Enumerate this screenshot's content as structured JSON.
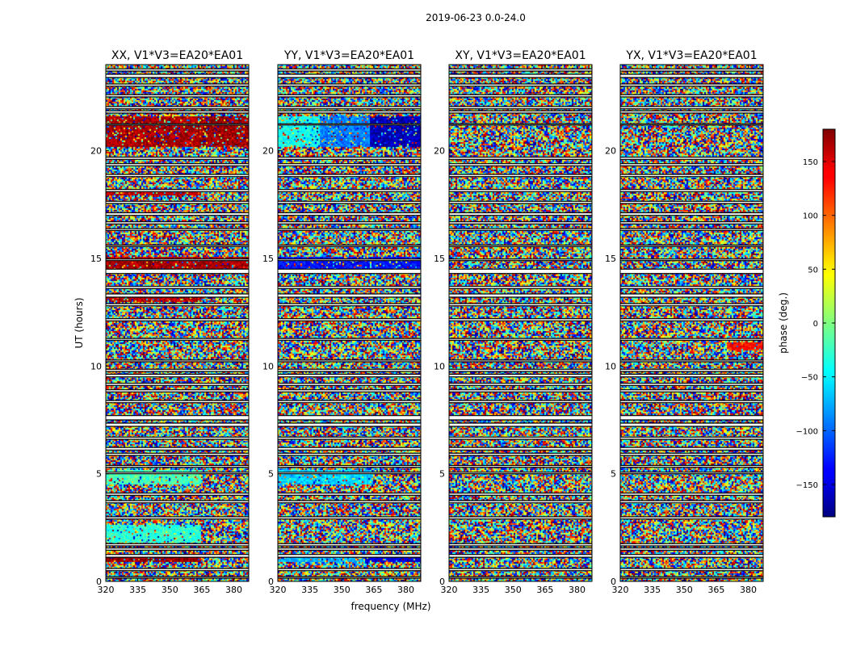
{
  "figure": {
    "suptitle": "2019-06-23 0.0-24.0"
  },
  "chart_data": [
    {
      "type": "heatmap",
      "title": "XX, V1*V3=EA20*EA01",
      "xlabel": "",
      "ylabel": "UT (hours)",
      "xlim": [
        320,
        387
      ],
      "ylim": [
        0,
        24
      ],
      "xticks": [
        "320",
        "335",
        "350",
        "365",
        "380"
      ],
      "yticks": [
        "0",
        "5",
        "10",
        "15",
        "20"
      ],
      "coherent_regions": [
        {
          "y": [
            20.2,
            21.6
          ],
          "x": [
            320,
            363
          ],
          "phase_deg": 165
        },
        {
          "y": [
            20.2,
            21.6
          ],
          "x": [
            363,
            387
          ],
          "phase_deg": 170
        },
        {
          "y": [
            14.5,
            15.1
          ],
          "x": [
            320,
            387
          ],
          "phase_deg": 165
        },
        {
          "y": [
            13.0,
            13.3
          ],
          "x": [
            320,
            365
          ],
          "phase_deg": 160
        },
        {
          "y": [
            17.9,
            18.2
          ],
          "x": [
            320,
            365
          ],
          "phase_deg": 160
        },
        {
          "y": [
            0.9,
            1.1
          ],
          "x": [
            320,
            363
          ],
          "phase_deg": 170
        },
        {
          "y": [
            4.5,
            5.2
          ],
          "x": [
            320,
            365
          ],
          "phase_deg": -20
        },
        {
          "y": [
            1.8,
            2.6
          ],
          "x": [
            320,
            365
          ],
          "phase_deg": -30
        }
      ]
    },
    {
      "type": "heatmap",
      "title": "YY, V1*V3=EA20*EA01",
      "xlabel": "frequency (MHz)",
      "ylabel": "",
      "xlim": [
        320,
        387
      ],
      "ylim": [
        0,
        24
      ],
      "xticks": [
        "320",
        "335",
        "350",
        "365",
        "380"
      ],
      "yticks": [
        "0",
        "5",
        "10",
        "15",
        "20"
      ],
      "coherent_regions": [
        {
          "y": [
            20.2,
            21.6
          ],
          "x": [
            320,
            340
          ],
          "phase_deg": -40
        },
        {
          "y": [
            20.2,
            21.6
          ],
          "x": [
            340,
            363
          ],
          "phase_deg": -90
        },
        {
          "y": [
            20.2,
            21.6
          ],
          "x": [
            363,
            387
          ],
          "phase_deg": -160
        },
        {
          "y": [
            14.5,
            15.1
          ],
          "x": [
            320,
            387
          ],
          "phase_deg": -130
        },
        {
          "y": [
            0.9,
            1.1
          ],
          "x": [
            320,
            360
          ],
          "phase_deg": -70
        },
        {
          "y": [
            0.9,
            1.1
          ],
          "x": [
            360,
            387
          ],
          "phase_deg": -150
        },
        {
          "y": [
            4.5,
            5.2
          ],
          "x": [
            320,
            365
          ],
          "phase_deg": -60
        }
      ]
    },
    {
      "type": "heatmap",
      "title": "XY, V1*V3=EA20*EA01",
      "xlabel": "",
      "ylabel": "",
      "xlim": [
        320,
        387
      ],
      "ylim": [
        0,
        24
      ],
      "xticks": [
        "320",
        "335",
        "350",
        "365",
        "380"
      ],
      "yticks": [
        "0",
        "5",
        "10",
        "15",
        "20"
      ],
      "coherent_regions": []
    },
    {
      "type": "heatmap",
      "title": "YX, V1*V3=EA20*EA01",
      "xlabel": "",
      "ylabel": "",
      "xlim": [
        320,
        387
      ],
      "ylim": [
        0,
        24
      ],
      "xticks": [
        "320",
        "335",
        "350",
        "365",
        "380"
      ],
      "yticks": [
        "0",
        "5",
        "10",
        "15",
        "20"
      ],
      "coherent_regions": [
        {
          "y": [
            10.7,
            11.1
          ],
          "x": [
            370,
            387
          ],
          "phase_deg": 130
        }
      ]
    }
  ],
  "data_gaps_ut": [
    [
      0.15,
      0.22
    ],
    [
      0.5,
      0.6
    ],
    [
      1.12,
      1.25
    ],
    [
      1.45,
      1.55
    ],
    [
      1.65,
      1.75
    ],
    [
      2.9,
      3.0
    ],
    [
      3.65,
      3.75
    ],
    [
      4.0,
      4.1
    ],
    [
      5.0,
      5.07
    ],
    [
      5.3,
      5.38
    ],
    [
      5.85,
      5.95
    ],
    [
      6.1,
      6.22
    ],
    [
      6.6,
      6.7
    ],
    [
      7.2,
      7.35
    ],
    [
      7.5,
      7.7
    ],
    [
      8.3,
      8.4
    ],
    [
      8.8,
      8.9
    ],
    [
      9.1,
      9.2
    ],
    [
      9.5,
      9.62
    ],
    [
      9.75,
      9.85
    ],
    [
      10.2,
      10.28
    ],
    [
      11.2,
      11.28
    ],
    [
      12.1,
      12.2
    ],
    [
      12.8,
      12.9
    ],
    [
      13.2,
      13.35
    ],
    [
      13.6,
      13.7
    ],
    [
      14.3,
      14.5
    ],
    [
      14.9,
      14.97
    ],
    [
      15.55,
      15.62
    ],
    [
      16.3,
      16.38
    ],
    [
      16.6,
      16.7
    ],
    [
      17.0,
      17.12
    ],
    [
      17.55,
      17.65
    ],
    [
      18.1,
      18.2
    ],
    [
      18.8,
      18.9
    ],
    [
      19.3,
      19.4
    ],
    [
      19.6,
      19.7
    ],
    [
      21.2,
      21.25
    ],
    [
      21.75,
      21.85
    ],
    [
      21.95,
      22.05
    ],
    [
      22.5,
      22.6
    ],
    [
      23.0,
      23.1
    ],
    [
      23.4,
      23.55
    ],
    [
      23.7,
      23.8
    ]
  ],
  "colorbar": {
    "label": "phase (deg.)",
    "range": [
      -180,
      180
    ],
    "ticks": [
      "150",
      "100",
      "50",
      "0",
      "−50",
      "−100",
      "−150"
    ],
    "tick_values": [
      150,
      100,
      50,
      0,
      -50,
      -100,
      -150
    ],
    "colormap": "jet"
  }
}
